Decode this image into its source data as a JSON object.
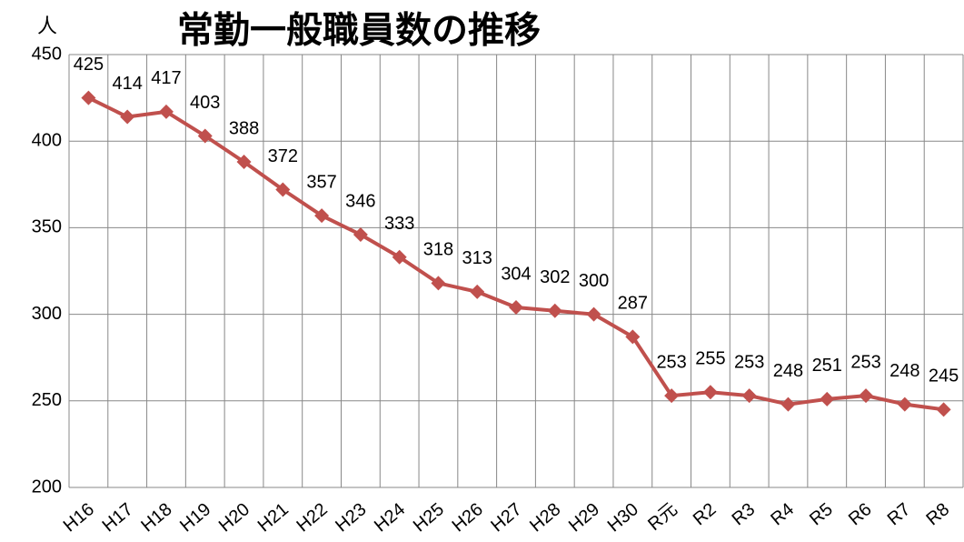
{
  "chart_data": {
    "type": "line",
    "title": "常勤一般職員数の推移",
    "y_label": "人",
    "categories": [
      "H16",
      "H17",
      "H18",
      "H19",
      "H20",
      "H21",
      "H22",
      "H23",
      "H24",
      "H25",
      "H26",
      "H27",
      "H28",
      "H29",
      "H30",
      "R元",
      "R2",
      "R3",
      "R4",
      "R5",
      "R6",
      "R7",
      "R8"
    ],
    "series": [
      {
        "name": "常勤一般職員数",
        "color": "#c0504d",
        "values": [
          425,
          414,
          417,
          403,
          388,
          372,
          357,
          346,
          333,
          318,
          313,
          304,
          302,
          300,
          287,
          253,
          255,
          253,
          248,
          251,
          253,
          248,
          245
        ]
      }
    ],
    "ylim": [
      200,
      450
    ],
    "yticks": [
      200,
      250,
      300,
      350,
      400,
      450
    ],
    "grid": true
  }
}
